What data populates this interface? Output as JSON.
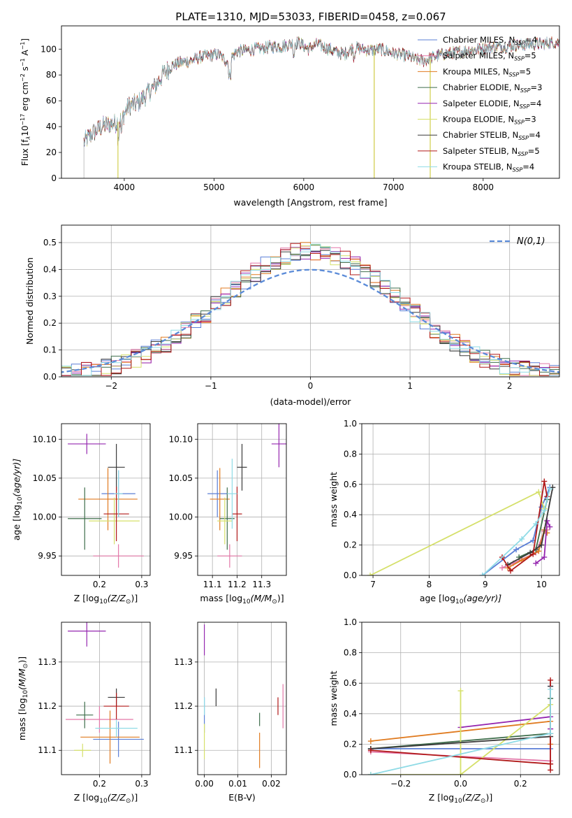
{
  "figure": {
    "title": "PLATE=1310, MJD=53033, FIBERID=0458, z=0.067"
  },
  "legend_items": [
    {
      "label": "Chabrier MILES, N",
      "sub": "SSP",
      "suffix": "=4",
      "color": "#5b7fd6"
    },
    {
      "label": "Salpeter MILES, N",
      "sub": "SSP",
      "suffix": "=5",
      "color": "#e377a8"
    },
    {
      "label": "Kroupa MILES, N",
      "sub": "SSP",
      "suffix": "=5",
      "color": "#e07b20"
    },
    {
      "label": "Chabrier ELODIE, N",
      "sub": "SSP",
      "suffix": "=3",
      "color": "#3f6e4c"
    },
    {
      "label": "Salpeter ELODIE, N",
      "sub": "SSP",
      "suffix": "=4",
      "color": "#9527b0"
    },
    {
      "label": "Kroupa ELODIE, N",
      "sub": "SSP",
      "suffix": "=3",
      "color": "#d5e06a"
    },
    {
      "label": "Chabrier STELIB, N",
      "sub": "SSP",
      "suffix": "=4",
      "color": "#3a3a3a"
    },
    {
      "label": "Salpeter STELIB, N",
      "sub": "SSP",
      "suffix": "=5",
      "color": "#b01818"
    },
    {
      "label": "Kroupa STELIB, N",
      "sub": "SSP",
      "suffix": "=4",
      "color": "#8fdbe6"
    }
  ],
  "chart_data": [
    {
      "id": "spectrum",
      "type": "line",
      "xlabel": "wavelength [Angstrom, rest frame]",
      "ylabel_main": "Flux [f",
      "ylabel_sub": "λ",
      "ylabel_rest": "10",
      "ylabel_sup1": "−17",
      "ylabel_mid": " erg cm",
      "ylabel_sup2": "−2",
      "ylabel_mid2": " s",
      "ylabel_sup3": "−1",
      "ylabel_mid3": " A",
      "ylabel_sup4": "−1",
      "ylabel_end": "]",
      "xlim": [
        3300,
        8850
      ],
      "ylim": [
        0,
        118
      ],
      "xticks": [
        4000,
        5000,
        6000,
        7000,
        8000
      ],
      "yticks": [
        0,
        20,
        40,
        60,
        80,
        100
      ],
      "continuum": [
        [
          3550,
          28
        ],
        [
          3650,
          35
        ],
        [
          3750,
          40
        ],
        [
          3850,
          42
        ],
        [
          3950,
          44
        ],
        [
          4050,
          56
        ],
        [
          4150,
          58
        ],
        [
          4250,
          65
        ],
        [
          4350,
          72
        ],
        [
          4450,
          82
        ],
        [
          4550,
          88
        ],
        [
          4650,
          90
        ],
        [
          4750,
          91
        ],
        [
          4850,
          94
        ],
        [
          4950,
          95
        ],
        [
          5050,
          96
        ],
        [
          5150,
          90
        ],
        [
          5250,
          98
        ],
        [
          5350,
          99
        ],
        [
          5450,
          100
        ],
        [
          5550,
          101
        ],
        [
          5650,
          102
        ],
        [
          5750,
          102
        ],
        [
          5850,
          104
        ],
        [
          5950,
          105
        ],
        [
          6050,
          100
        ],
        [
          6150,
          104
        ],
        [
          6250,
          101
        ],
        [
          6350,
          98
        ],
        [
          6450,
          96
        ],
        [
          6550,
          101
        ],
        [
          6650,
          100
        ],
        [
          6750,
          99
        ],
        [
          6850,
          100
        ],
        [
          6950,
          98
        ],
        [
          7050,
          96
        ],
        [
          7150,
          95
        ],
        [
          7250,
          92
        ],
        [
          7350,
          91
        ],
        [
          7450,
          94
        ],
        [
          7550,
          96
        ],
        [
          7650,
          97
        ],
        [
          7750,
          98
        ],
        [
          7850,
          99
        ],
        [
          7950,
          100
        ],
        [
          8050,
          101
        ],
        [
          8150,
          102
        ],
        [
          8250,
          102
        ],
        [
          8350,
          103
        ],
        [
          8450,
          103
        ],
        [
          8550,
          104
        ],
        [
          8650,
          104
        ],
        [
          8750,
          105
        ],
        [
          8850,
          105
        ]
      ],
      "drops": [
        {
          "x": 3930,
          "series": [
            2,
            5
          ]
        },
        {
          "x": 6785,
          "series": [
            2,
            5
          ]
        },
        {
          "x": 7410,
          "series": [
            2,
            5
          ]
        }
      ]
    },
    {
      "id": "residual-histogram",
      "type": "histogram",
      "xlabel": "(data-model)/error",
      "ylabel": "Normed distribution",
      "xlim": [
        -2.5,
        2.5
      ],
      "ylim": [
        0,
        0.565
      ],
      "xticks": [
        -2,
        -1,
        0,
        1,
        2
      ],
      "yticks": [
        0.0,
        0.1,
        0.2,
        0.3,
        0.4,
        0.5
      ],
      "bin_width": 0.1,
      "normal_curve_label": "N(0,1)",
      "normal_curve_color": "#5b8bd8"
    },
    {
      "id": "age-vs-z",
      "type": "scatter",
      "xlabel_pre": "Z [log",
      "xlabel_sub": "10",
      "xlabel_post": "(Z/Z",
      "xlabel_subsun": "⊙",
      "xlabel_end": ")]",
      "ylabel_pre": "age  [log",
      "ylabel_sub": "10",
      "ylabel_post": "(age/yr)]",
      "xlim": [
        0.11,
        0.32
      ],
      "ylim": [
        9.925,
        10.12
      ],
      "xticks": [
        0.2,
        0.3
      ],
      "yticks": [
        9.95,
        10.0,
        10.05,
        10.1
      ],
      "points": [
        {
          "x": 0.245,
          "y": 10.03,
          "xerr": 0.04,
          "yerr": 0.03,
          "c": 0
        },
        {
          "x": 0.245,
          "y": 9.95,
          "xerr": 0.06,
          "yerr": 0.015,
          "c": 1
        },
        {
          "x": 0.22,
          "y": 10.023,
          "xerr": 0.07,
          "yerr": 0.04,
          "c": 2
        },
        {
          "x": 0.165,
          "y": 9.998,
          "xerr": 0.04,
          "yerr": 0.04,
          "c": 3
        },
        {
          "x": 0.17,
          "y": 10.094,
          "xerr": 0.045,
          "yerr": 0.013,
          "c": 4
        },
        {
          "x": 0.235,
          "y": 9.995,
          "xerr": 0.06,
          "yerr": 0.03,
          "c": 5
        },
        {
          "x": 0.24,
          "y": 10.064,
          "xerr": 0.02,
          "yerr": 0.03,
          "c": 6
        },
        {
          "x": 0.24,
          "y": 10.004,
          "xerr": 0.03,
          "yerr": 0.035,
          "c": 7
        },
        {
          "x": 0.245,
          "y": 10.03,
          "xerr": 0.01,
          "yerr": 0.03,
          "c": 8
        }
      ]
    },
    {
      "id": "age-vs-mass",
      "type": "scatter",
      "xlabel_pre": "mass [log",
      "xlabel_sub": "10",
      "xlabel_post": "(M/M",
      "xlabel_subsun": "⊙",
      "xlabel_end": ")]",
      "ylabel_pre": "",
      "ylabel_sub": "",
      "ylabel_post": "",
      "xlim": [
        11.04,
        11.4
      ],
      "ylim": [
        9.925,
        10.12
      ],
      "xticks": [
        11.1,
        11.2,
        11.3
      ],
      "yticks": [
        9.95,
        10.0,
        10.05,
        10.1
      ],
      "points": [
        {
          "x": 11.12,
          "y": 10.03,
          "xerr": 0.04,
          "yerr": 0.03,
          "c": 0
        },
        {
          "x": 11.17,
          "y": 9.95,
          "xerr": 0.05,
          "yerr": 0.015,
          "c": 1
        },
        {
          "x": 11.13,
          "y": 10.023,
          "xerr": 0.04,
          "yerr": 0.04,
          "c": 2
        },
        {
          "x": 11.16,
          "y": 9.998,
          "xerr": 0.03,
          "yerr": 0.04,
          "c": 3
        },
        {
          "x": 11.37,
          "y": 10.094,
          "xerr": 0.03,
          "yerr": 0.03,
          "c": 4
        },
        {
          "x": 11.15,
          "y": 9.995,
          "xerr": 0.03,
          "yerr": 0.03,
          "c": 5
        },
        {
          "x": 11.22,
          "y": 10.064,
          "xerr": 0.02,
          "yerr": 0.03,
          "c": 6
        },
        {
          "x": 11.2,
          "y": 10.004,
          "xerr": 0.02,
          "yerr": 0.035,
          "c": 7
        },
        {
          "x": 11.18,
          "y": 10.03,
          "xerr": 0.02,
          "yerr": 0.045,
          "c": 8
        }
      ]
    },
    {
      "id": "mass-weight-vs-age",
      "type": "line",
      "xlabel_pre": "age  [log",
      "xlabel_sub": "10",
      "xlabel_post": "(age/yr)]",
      "ylabel": "mass weight",
      "xlim": [
        6.8,
        10.32
      ],
      "ylim": [
        0,
        1.0
      ],
      "xticks": [
        7,
        8,
        9,
        10
      ],
      "yticks": [
        0.0,
        0.2,
        0.4,
        0.6,
        0.8,
        1.0
      ],
      "series": [
        {
          "c": 0,
          "points": [
            [
              8.95,
              0.0
            ],
            [
              9.55,
              0.17
            ],
            [
              9.85,
              0.23
            ],
            [
              10.0,
              0.45
            ],
            [
              10.15,
              0.58
            ]
          ]
        },
        {
          "c": 1,
          "points": [
            [
              9.3,
              0.05
            ],
            [
              9.5,
              0.08
            ],
            [
              9.9,
              0.15
            ],
            [
              10.05,
              0.29
            ],
            [
              10.1,
              0.3
            ]
          ]
        },
        {
          "c": 2,
          "points": [
            [
              9.4,
              0.05
            ],
            [
              9.65,
              0.1
            ],
            [
              9.95,
              0.16
            ],
            [
              10.05,
              0.3
            ],
            [
              10.1,
              0.28
            ]
          ]
        },
        {
          "c": 3,
          "points": [
            [
              9.6,
              0.12
            ],
            [
              9.9,
              0.17
            ],
            [
              10.1,
              0.5
            ]
          ]
        },
        {
          "c": 4,
          "points": [
            [
              9.9,
              0.08
            ],
            [
              10.05,
              0.12
            ],
            [
              10.1,
              0.36
            ],
            [
              10.15,
              0.32
            ]
          ]
        },
        {
          "c": 5,
          "points": [
            [
              6.95,
              0.0
            ],
            [
              9.95,
              0.55
            ],
            [
              10.05,
              0.44
            ]
          ]
        },
        {
          "c": 6,
          "points": [
            [
              9.4,
              0.07
            ],
            [
              9.8,
              0.15
            ],
            [
              10.0,
              0.2
            ],
            [
              10.2,
              0.58
            ]
          ]
        },
        {
          "c": 7,
          "points": [
            [
              9.3,
              0.12
            ],
            [
              9.45,
              0.03
            ],
            [
              9.85,
              0.14
            ],
            [
              10.05,
              0.62
            ],
            [
              10.1,
              0.52
            ]
          ]
        },
        {
          "c": 8,
          "points": [
            [
              8.95,
              0.0
            ],
            [
              9.65,
              0.24
            ],
            [
              9.9,
              0.34
            ],
            [
              10.05,
              0.43
            ],
            [
              10.15,
              0.57
            ]
          ]
        }
      ]
    },
    {
      "id": "mass-vs-z",
      "type": "scatter",
      "xlabel_pre": "Z [log",
      "xlabel_sub": "10",
      "xlabel_post": "(Z/Z",
      "xlabel_subsun": "⊙",
      "xlabel_end": ")]",
      "ylabel_pre": "mass [log",
      "ylabel_sub": "10",
      "ylabel_post": "(M/M",
      "ylabel_subsun": "⊙",
      "ylabel_end": ")]",
      "xlim": [
        0.11,
        0.32
      ],
      "ylim": [
        11.045,
        11.39
      ],
      "xticks": [
        0.2,
        0.3
      ],
      "yticks": [
        11.1,
        11.2,
        11.3
      ],
      "points": [
        {
          "x": 0.245,
          "y": 11.125,
          "xerr": 0.06,
          "yerr": 0.04,
          "c": 0
        },
        {
          "x": 0.2,
          "y": 11.17,
          "xerr": 0.08,
          "yerr": 0.03,
          "c": 1
        },
        {
          "x": 0.225,
          "y": 11.13,
          "xerr": 0.07,
          "yerr": 0.06,
          "c": 2
        },
        {
          "x": 0.165,
          "y": 11.18,
          "xerr": 0.02,
          "yerr": 0.03,
          "c": 3
        },
        {
          "x": 0.17,
          "y": 11.37,
          "xerr": 0.045,
          "yerr": 0.035,
          "c": 4
        },
        {
          "x": 0.16,
          "y": 11.1,
          "xerr": 0.02,
          "yerr": 0.015,
          "c": 5
        },
        {
          "x": 0.24,
          "y": 11.22,
          "xerr": 0.02,
          "yerr": 0.02,
          "c": 6
        },
        {
          "x": 0.24,
          "y": 11.2,
          "xerr": 0.03,
          "yerr": 0.03,
          "c": 7
        },
        {
          "x": 0.24,
          "y": 11.15,
          "xerr": 0.05,
          "yerr": 0.02,
          "c": 8
        }
      ]
    },
    {
      "id": "mass-vs-ebv",
      "type": "scatter",
      "xlabel_pre": "E(B-V)",
      "xlabel_sub": "",
      "xlabel_post": "",
      "xlim": [
        -0.002,
        0.0245
      ],
      "ylim": [
        11.045,
        11.39
      ],
      "xticks": [
        0.0,
        0.01,
        0.02
      ],
      "yticks": [
        11.1,
        11.2,
        11.3
      ],
      "points": [
        {
          "x": 0.0,
          "y": 11.18,
          "xerr": 0,
          "yerr": 0.04,
          "c": 0
        },
        {
          "x": 0.0235,
          "y": 11.2,
          "xerr": 0,
          "yerr": 0.05,
          "c": 1
        },
        {
          "x": 0.0165,
          "y": 11.1,
          "xerr": 0,
          "yerr": 0.04,
          "c": 2
        },
        {
          "x": 0.0165,
          "y": 11.17,
          "xerr": 0,
          "yerr": 0.015,
          "c": 3
        },
        {
          "x": 0.0,
          "y": 11.35,
          "xerr": 0,
          "yerr": 0.035,
          "c": 4
        },
        {
          "x": 0.0,
          "y": 11.12,
          "xerr": 0,
          "yerr": 0.04,
          "c": 5
        },
        {
          "x": 0.0035,
          "y": 11.22,
          "xerr": 0,
          "yerr": 0.02,
          "c": 6
        },
        {
          "x": 0.022,
          "y": 11.2,
          "xerr": 0,
          "yerr": 0.02,
          "c": 7
        },
        {
          "x": 0.0,
          "y": 11.2,
          "xerr": 0,
          "yerr": 0.02,
          "c": 8
        }
      ]
    },
    {
      "id": "mass-weight-vs-z",
      "type": "line",
      "xlabel_pre": "Z [log",
      "xlabel_sub": "10",
      "xlabel_post": "(Z/Z",
      "xlabel_subsun": "⊙",
      "xlabel_end": ")]",
      "ylabel": "mass weight",
      "xlim": [
        -0.33,
        0.33
      ],
      "ylim": [
        0,
        1.0
      ],
      "xticks": [
        -0.2,
        0.0,
        0.2
      ],
      "yticks": [
        0.0,
        0.2,
        0.4,
        0.6,
        0.8,
        1.0
      ],
      "series": [
        {
          "c": 0,
          "points": [
            [
              -0.3,
              0.17
            ],
            [
              0.3,
              0.17
            ],
            [
              0.3,
              0.58
            ]
          ]
        },
        {
          "c": 1,
          "points": [
            [
              -0.3,
              0.15
            ],
            [
              0.3,
              0.09
            ],
            [
              0.3,
              0.3
            ]
          ]
        },
        {
          "c": 2,
          "points": [
            [
              -0.3,
              0.22
            ],
            [
              0.3,
              0.35
            ],
            [
              0.3,
              0.2
            ]
          ]
        },
        {
          "c": 3,
          "points": [
            [
              -0.3,
              0.17
            ],
            [
              0.3,
              0.27
            ],
            [
              0.3,
              0.5
            ]
          ]
        },
        {
          "c": 4,
          "points": [
            [
              0.0,
              0.31
            ],
            [
              0.3,
              0.38
            ],
            [
              0.3,
              0.3
            ]
          ]
        },
        {
          "c": 5,
          "points": [
            [
              -0.3,
              0.0
            ],
            [
              0.0,
              0.0
            ],
            [
              0.0,
              0.55
            ],
            [
              0.0,
              0.0
            ],
            [
              0.3,
              0.46
            ]
          ]
        },
        {
          "c": 6,
          "points": [
            [
              -0.3,
              0.17
            ],
            [
              0.3,
              0.25
            ],
            [
              0.3,
              0.58
            ]
          ]
        },
        {
          "c": 7,
          "points": [
            [
              -0.3,
              0.16
            ],
            [
              0.3,
              0.07
            ],
            [
              0.3,
              0.62
            ],
            [
              0.3,
              0.03
            ]
          ]
        },
        {
          "c": 8,
          "points": [
            [
              -0.3,
              0.0
            ],
            [
              0.3,
              0.27
            ],
            [
              0.3,
              0.56
            ]
          ]
        }
      ]
    }
  ]
}
